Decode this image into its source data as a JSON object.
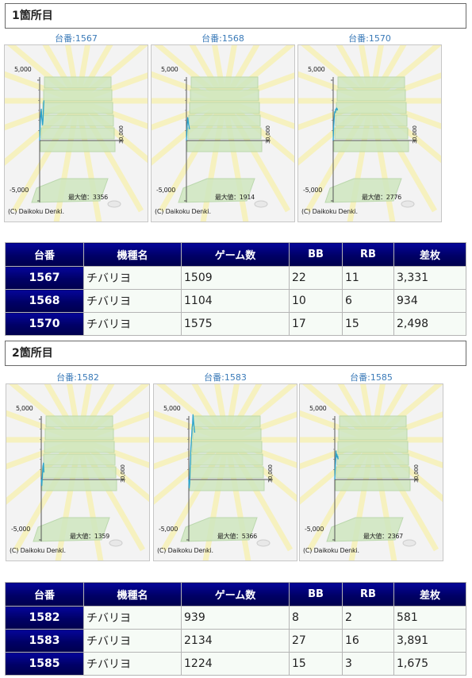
{
  "sections": [
    {
      "title": "1箇所目",
      "charts": [
        {
          "caption": "台番:1567",
          "y_pos_label": "5,000",
          "y_neg_label": "-5,000",
          "x_label": "30,000",
          "max_label": "最大値：3356",
          "copyright": "(C) Daikoku Denki."
        },
        {
          "caption": "台番:1568",
          "y_pos_label": "5,000",
          "y_neg_label": "-5,000",
          "x_label": "30,000",
          "max_label": "最大値：1914",
          "copyright": "(C) Daikoku Denki."
        },
        {
          "caption": "台番:1570",
          "y_pos_label": "5,000",
          "y_neg_label": "-5,000",
          "x_label": "30,000",
          "max_label": "最大値：2776",
          "copyright": "(C) Daikoku Denki."
        }
      ],
      "table": {
        "headers": [
          "台番",
          "機種名",
          "ゲーム数",
          "BB",
          "RB",
          "差枚"
        ],
        "rows": [
          [
            "1567",
            "チバリヨ",
            "1509",
            "22",
            "11",
            "3,331"
          ],
          [
            "1568",
            "チバリヨ",
            "1104",
            "10",
            "6",
            "934"
          ],
          [
            "1570",
            "チバリヨ",
            "1575",
            "17",
            "15",
            "2,498"
          ]
        ]
      }
    },
    {
      "title": "2箇所目",
      "charts": [
        {
          "caption": "台番:1582",
          "y_pos_label": "5,000",
          "y_neg_label": "-5,000",
          "x_label": "30,000",
          "max_label": "最大値：1359",
          "copyright": "(C) Daikoku Denki."
        },
        {
          "caption": "台番:1583",
          "y_pos_label": "5,000",
          "y_neg_label": "-5,000",
          "x_label": "30,000",
          "max_label": "最大値：5366",
          "copyright": "(C) Daikoku Denki."
        },
        {
          "caption": "台番:1585",
          "y_pos_label": "5,000",
          "y_neg_label": "-5,000",
          "x_label": "30,000",
          "max_label": "最大値：2367",
          "copyright": "(C) Daikoku Denki."
        }
      ],
      "table": {
        "headers": [
          "台番",
          "機種名",
          "ゲーム数",
          "BB",
          "RB",
          "差枚"
        ],
        "rows": [
          [
            "1582",
            "チバリヨ",
            "939",
            "8",
            "2",
            "581"
          ],
          [
            "1583",
            "チバリヨ",
            "2134",
            "27",
            "16",
            "3,891"
          ],
          [
            "1585",
            "チバリヨ",
            "1224",
            "15",
            "3",
            "1,675"
          ]
        ]
      }
    }
  ],
  "chart_data": [
    {
      "type": "line",
      "ylim": [
        -5000,
        5000
      ],
      "xlim": [
        0,
        30000
      ],
      "x": [
        0,
        150,
        300,
        450,
        600,
        750,
        900,
        1050,
        1200,
        1350,
        1509
      ],
      "values": [
        0,
        900,
        1900,
        2300,
        2600,
        1900,
        1600,
        1300,
        1700,
        2600,
        3331
      ]
    },
    {
      "type": "line",
      "ylim": [
        -5000,
        5000
      ],
      "xlim": [
        0,
        30000
      ],
      "x": [
        0,
        150,
        300,
        450,
        600,
        750,
        900,
        1104
      ],
      "values": [
        0,
        700,
        1400,
        1900,
        1700,
        1400,
        1200,
        934
      ]
    },
    {
      "type": "line",
      "ylim": [
        -5000,
        5000
      ],
      "xlim": [
        0,
        30000
      ],
      "x": [
        0,
        150,
        300,
        450,
        600,
        750,
        900,
        1050,
        1200,
        1350,
        1575
      ],
      "values": [
        0,
        1000,
        1700,
        2200,
        2400,
        2300,
        2600,
        2500,
        2700,
        2650,
        2498
      ]
    },
    {
      "type": "line",
      "ylim": [
        -5000,
        5000
      ],
      "xlim": [
        0,
        30000
      ],
      "x": [
        0,
        200,
        400,
        600,
        800,
        939
      ],
      "values": [
        0,
        -500,
        300,
        1100,
        1359,
        581
      ]
    },
    {
      "type": "line",
      "ylim": [
        -5000,
        5000
      ],
      "xlim": [
        0,
        30000
      ],
      "x": [
        0,
        150,
        300,
        450,
        600,
        750,
        900,
        1050,
        1200,
        1350,
        1500,
        1650,
        1800,
        1950,
        2134
      ],
      "values": [
        0,
        -700,
        -300,
        800,
        1700,
        2600,
        3200,
        3700,
        4300,
        4600,
        5366,
        4900,
        4500,
        4200,
        3891
      ]
    },
    {
      "type": "line",
      "ylim": [
        -5000,
        5000
      ],
      "xlim": [
        0,
        30000
      ],
      "x": [
        0,
        150,
        300,
        450,
        600,
        750,
        900,
        1050,
        1224
      ],
      "values": [
        0,
        900,
        1600,
        2367,
        1900,
        2100,
        1800,
        1950,
        1675
      ]
    }
  ],
  "colors": {
    "line": "#2aa3cc",
    "header_bg": "#000066",
    "cell_bg": "#f6fbf6",
    "caption": "#3a7ab8"
  }
}
